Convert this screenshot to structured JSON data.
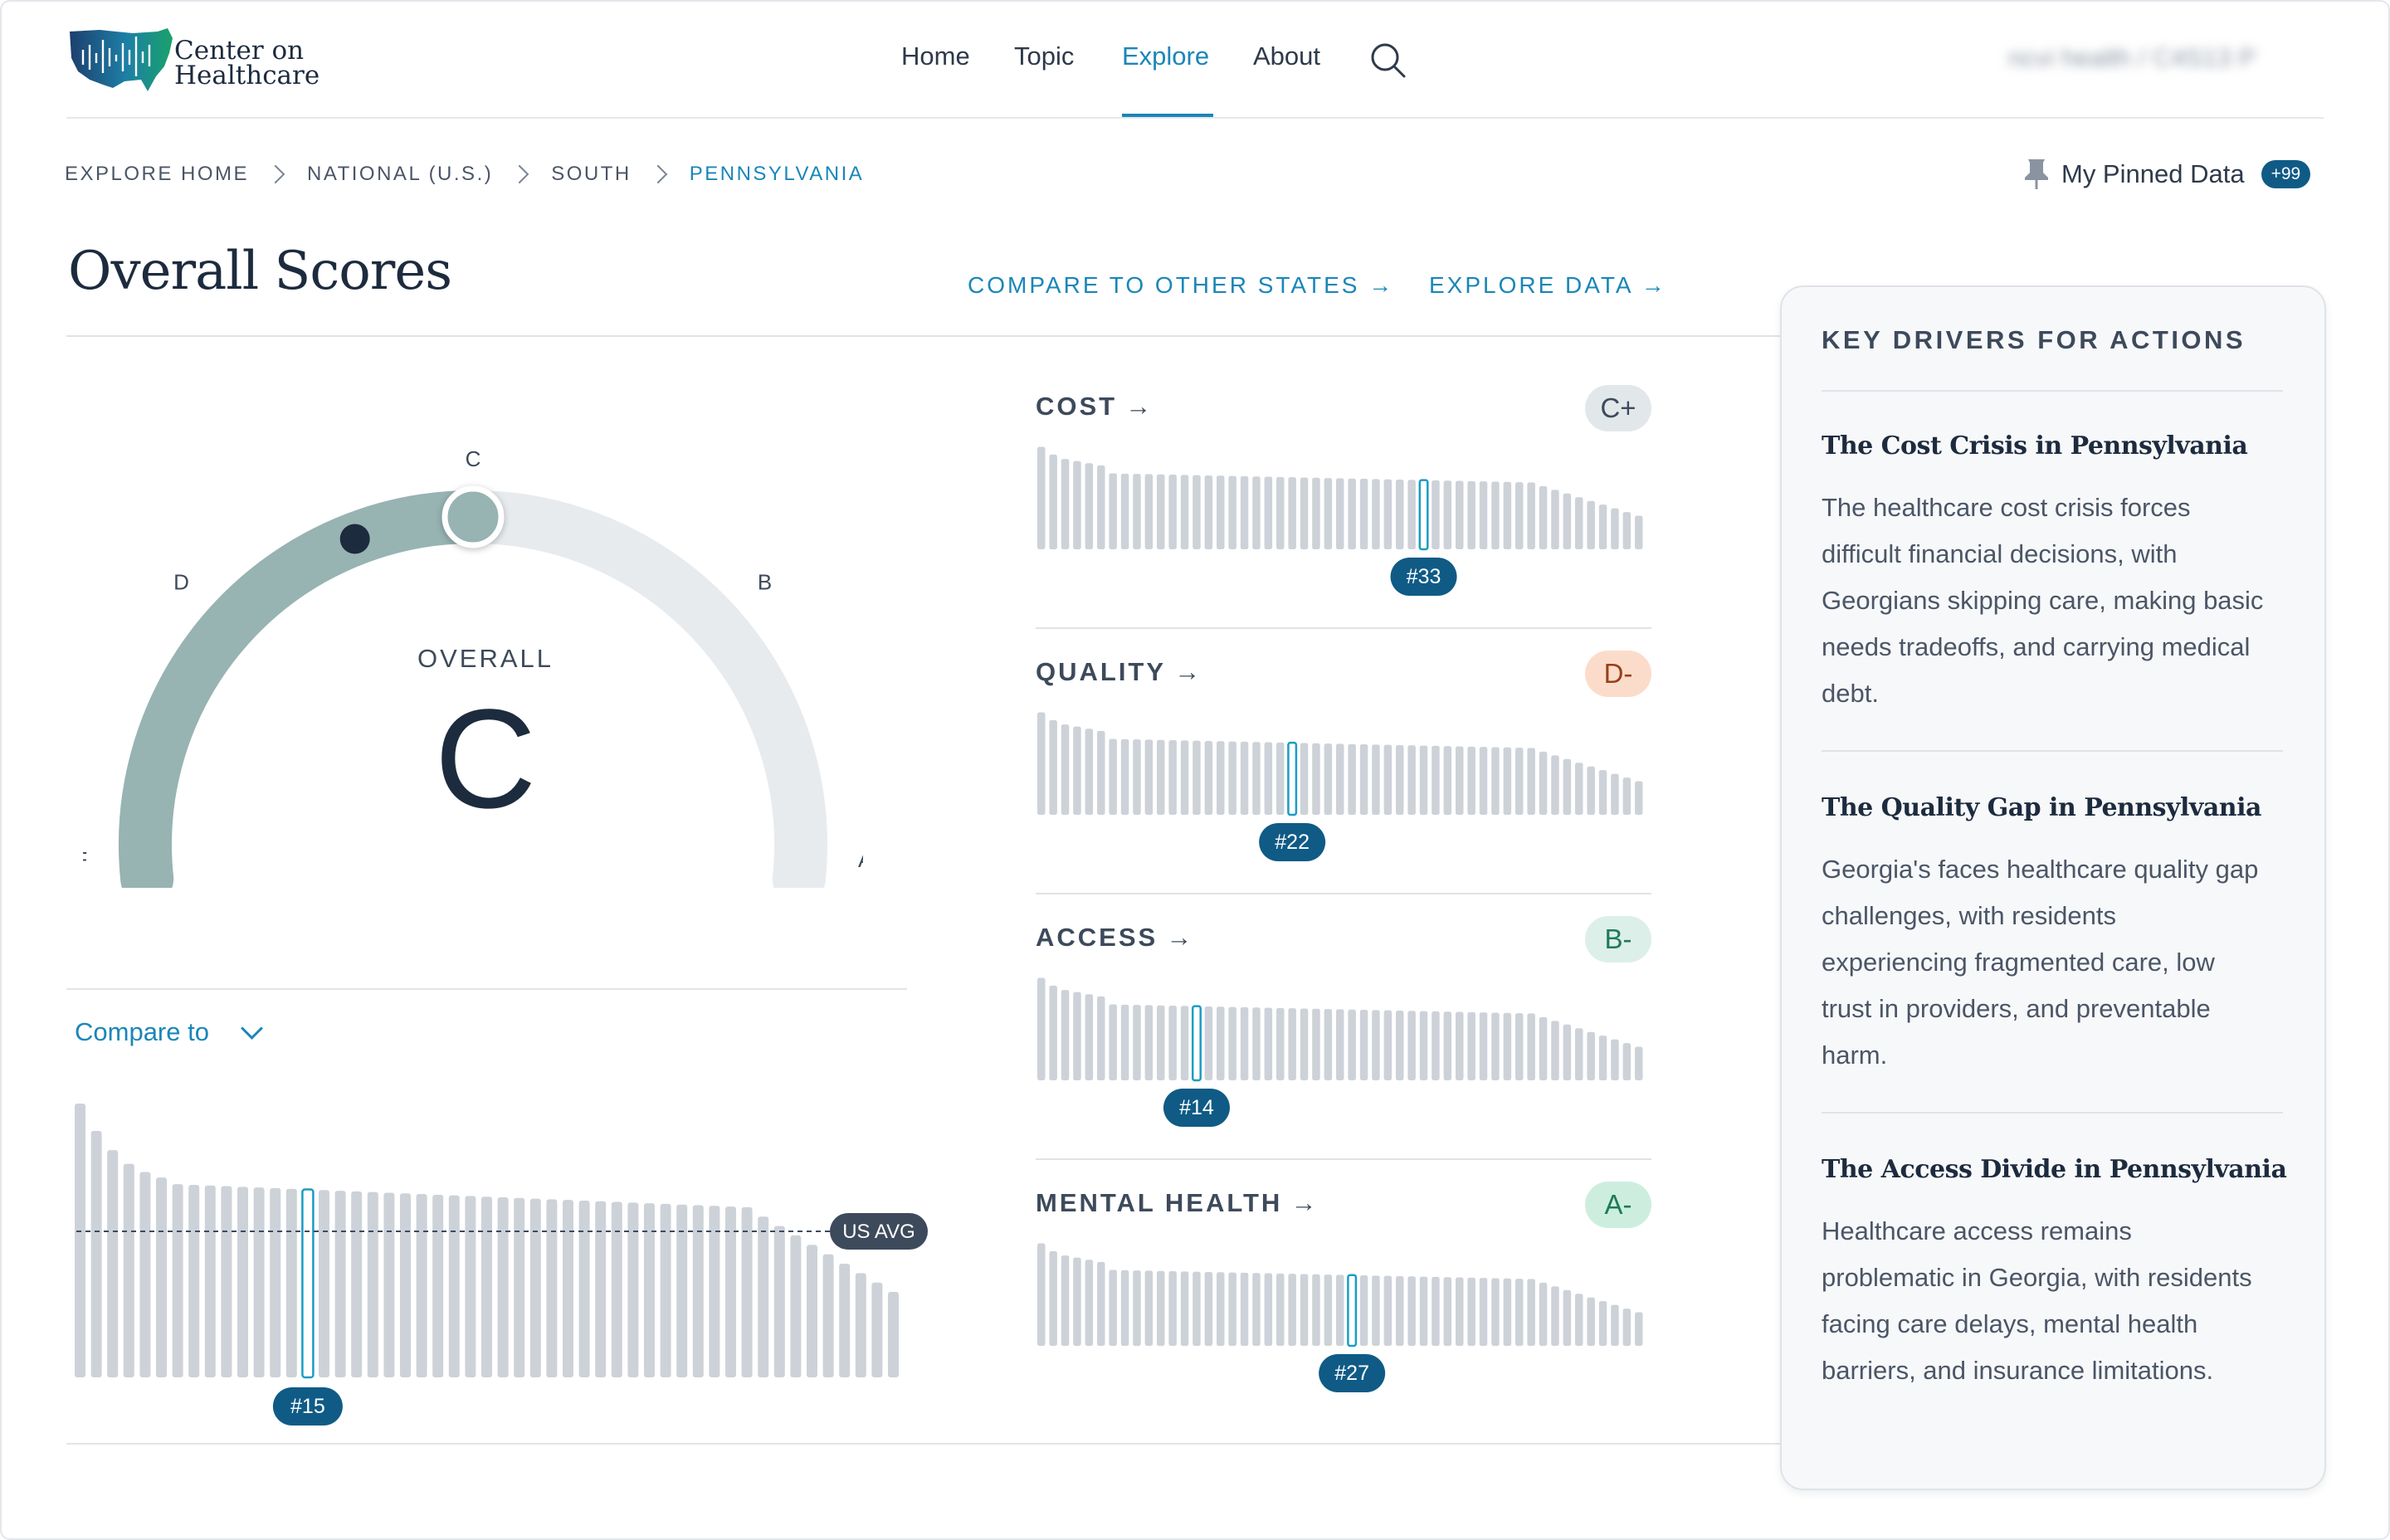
{
  "header": {
    "logo_text_line1": "Center on",
    "logo_text_line2": "Healthcare",
    "nav": [
      {
        "label": "Home",
        "active": false
      },
      {
        "label": "Topic",
        "active": false
      },
      {
        "label": "Explore",
        "active": true
      },
      {
        "label": "About",
        "active": false
      }
    ],
    "account_label": "ncvi health / C4S13 P"
  },
  "breadcrumb": [
    {
      "label": "EXPLORE HOME"
    },
    {
      "label": "NATIONAL (U.S.)"
    },
    {
      "label": "SOUTH"
    },
    {
      "label": "PENNSYLVANIA",
      "current": true
    }
  ],
  "pinned": {
    "label": "My Pinned Data",
    "badge": "+99"
  },
  "page_title": "Overall Scores",
  "actions": {
    "compare_states": "COMPARE TO OTHER STATES →",
    "explore_data": "EXPLORE DATA →"
  },
  "gauge": {
    "label": "OVERALL",
    "grade": "C",
    "scale_labels": [
      "F",
      "D",
      "C",
      "B",
      "A"
    ],
    "current_fraction": 0.5,
    "marker_fraction": 0.39,
    "colors": {
      "filled": "#97b3b2",
      "track": "#e8ebee",
      "marker": "#1d2b3e"
    }
  },
  "compare": {
    "label": "Compare to",
    "rank_label": "#15",
    "rank": 15,
    "avg_label": "US AVG",
    "bar_count": 51
  },
  "categories": [
    {
      "name": "COST",
      "grade": "C+",
      "rank_label": "#33",
      "rank": 33,
      "badge_bg": "#e2e7ea",
      "badge_fg": "#3d4a5b"
    },
    {
      "name": "QUALITY",
      "grade": "D-",
      "rank_label": "#22",
      "rank": 22,
      "badge_bg": "#fbdccb",
      "badge_fg": "#9a3f18"
    },
    {
      "name": "ACCESS",
      "grade": "B-",
      "rank_label": "#14",
      "rank": 14,
      "badge_bg": "#dcefe8",
      "badge_fg": "#1e7a5a"
    },
    {
      "name": "MENTAL HEALTH",
      "grade": "A-",
      "rank_label": "#27",
      "rank": 27,
      "badge_bg": "#cdeede",
      "badge_fg": "#1e7a5a"
    }
  ],
  "drivers": {
    "title": "KEY DRIVERS FOR ACTIONS",
    "items": [
      {
        "title": "The Cost Crisis in Pennsylvania",
        "lines": [
          "The healthcare cost crisis forces",
          "difficult financial decisions, with",
          "Georgians skipping care, making basic",
          "needs tradeoffs, and carrying medical",
          "debt."
        ]
      },
      {
        "title": "The Quality Gap in Pennsylvania",
        "lines": [
          "Georgia's faces healthcare quality gap",
          "challenges, with residents",
          "experiencing fragmented care, low",
          "trust in providers, and preventable",
          "harm."
        ]
      },
      {
        "title": "The Access Divide in Pennsylvania",
        "lines": [
          "Healthcare access remains",
          "problematic in Georgia, with residents",
          "facing care delays, mental health",
          "barriers, and insurance limitations."
        ]
      }
    ]
  },
  "colors": {
    "accent": "#1a86b8",
    "rank_badge": "#0f5b86",
    "bar": "#cdd2d9",
    "dark": "#1d2b3e"
  }
}
